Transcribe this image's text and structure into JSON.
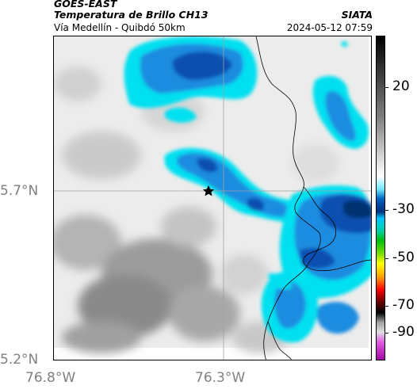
{
  "header": {
    "satellite": "GOES-EAST",
    "product": "Temperatura de Brillo CH13",
    "location": "Vía Medellín - Quibdó 50km",
    "agency": "SIATA",
    "datetime": "2024-05-12 07:59"
  },
  "map": {
    "lat_labels": [
      "5.7°N",
      "5.2°N"
    ],
    "lon_labels": [
      "76.8°W",
      "76.3°W"
    ],
    "marker": "star",
    "colors": {
      "background_light": "#ececec",
      "cloud_grey": "#8a8a8a",
      "cyan": "#00e0f0",
      "blue": "#1a8ce0",
      "dark_blue": "#0a50b0",
      "navy": "#003070",
      "border_line": "#000000",
      "gridline": "#a0a0a0"
    }
  },
  "colorbar": {
    "labels": [
      "20",
      "-30",
      "-50",
      "-70",
      "-90"
    ],
    "colors": [
      "#000000",
      "#ffffff",
      "#0060c0",
      "#00e0f0",
      "#00c000",
      "#ffff00",
      "#ff0000",
      "#000000",
      "#c0c0c0",
      "#c000c0"
    ]
  }
}
